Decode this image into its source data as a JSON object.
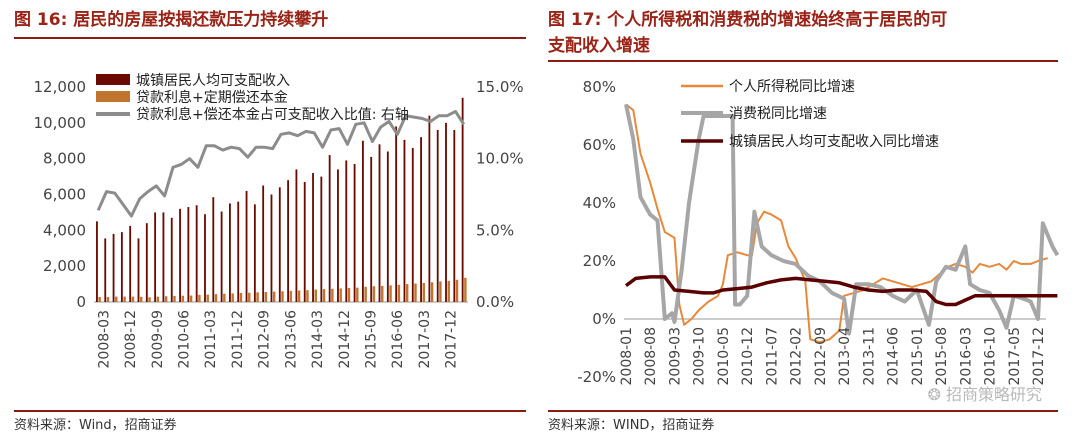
{
  "left": {
    "title": "图 16:   居民的房屋按揭还款压力持续攀升",
    "source": "资料来源：Wind，招商证券",
    "chart_data": {
      "type": "bar",
      "x_ticks": [
        "2008-03",
        "2008-12",
        "2009-09",
        "2010-06",
        "2011-03",
        "2011-12",
        "2012-09",
        "2013-06",
        "2014-03",
        "2014-12",
        "2015-09",
        "2016-06",
        "2017-03",
        "2017-12"
      ],
      "income": [
        4500,
        3550,
        3800,
        3900,
        4250,
        3550,
        4400,
        5000,
        5000,
        4700,
        5200,
        5300,
        5400,
        4900,
        5850,
        5050,
        5500,
        5600,
        6200,
        5450,
        6500,
        6000,
        6400,
        6800,
        7400,
        6700,
        7200,
        7000,
        8200,
        7400,
        7900,
        7700,
        9000,
        8100,
        8800,
        8400,
        9800,
        9050,
        8600,
        9200,
        10400,
        9600,
        10000,
        9600,
        11400
      ],
      "loan": [
        280,
        280,
        300,
        300,
        300,
        290,
        260,
        300,
        320,
        340,
        350,
        360,
        400,
        410,
        440,
        460,
        480,
        500,
        520,
        540,
        560,
        580,
        600,
        620,
        640,
        660,
        700,
        720,
        740,
        760,
        780,
        800,
        850,
        880,
        900,
        930,
        960,
        1000,
        1030,
        1060,
        1100,
        1150,
        1180,
        1240,
        1350
      ],
      "ratio": [
        6.4,
        7.7,
        7.6,
        6.8,
        6.0,
        7.2,
        7.7,
        8.1,
        7.4,
        9.4,
        9.6,
        10.0,
        9.4,
        10.9,
        10.9,
        10.6,
        10.8,
        10.7,
        10.1,
        10.8,
        10.8,
        10.7,
        11.7,
        11.8,
        11.6,
        11.9,
        11.8,
        10.8,
        12.0,
        12.1,
        11.0,
        12.4,
        12.5,
        11.2,
        12.2,
        12.6,
        11.7,
        13.0,
        12.9,
        12.8,
        12.6,
        13.0,
        13.0,
        13.3,
        12.4
      ],
      "y_left": {
        "min": 0,
        "max": 12000,
        "ticks": [
          "0",
          "2,000",
          "4,000",
          "6,000",
          "8,000",
          "10,000",
          "12,000"
        ]
      },
      "y_right": {
        "min": 0,
        "max": 15,
        "ticks": [
          "0.0%",
          "5.0%",
          "10.0%",
          "15.0%"
        ]
      },
      "legend": [
        {
          "label": "城镇居民人均可支配收入",
          "color": "#6b0a00",
          "kind": "bar"
        },
        {
          "label": "贷款利息+定期偿还本金",
          "color": "#c0742e",
          "kind": "bar"
        },
        {
          "label": "贷款利息+偿还本金占可支配收入比值: 右轴",
          "color": "#8c8c8c",
          "kind": "line"
        }
      ]
    }
  },
  "right": {
    "title_line1": "图 17:   个人所得税和消费税的增速始终高于居民的可",
    "title_line2": "支配收入增速",
    "source": "资料来源：WIND，招商证券",
    "watermark": "招商策略研究",
    "chart_data": {
      "type": "line",
      "x_ticks": [
        "2008-01",
        "2008-08",
        "2009-03",
        "2009-10",
        "2010-05",
        "2010-12",
        "2011-07",
        "2012-02",
        "2012-09",
        "2013-04",
        "2013-11",
        "2014-06",
        "2015-01",
        "2015-08",
        "2016-03",
        "2016-10",
        "2017-05",
        "2017-12"
      ],
      "y": {
        "min": -20,
        "max": 80,
        "ticks": [
          "-20%",
          "0%",
          "20%",
          "40%",
          "60%",
          "80%"
        ]
      },
      "series": [
        {
          "name": "个人所得税同比增速",
          "color": "#e8883a",
          "width": 2,
          "points": [
            [
              0,
              74
            ],
            [
              0.3,
              72
            ],
            [
              0.6,
              57
            ],
            [
              1,
              47
            ],
            [
              1.3,
              38
            ],
            [
              1.6,
              30
            ],
            [
              2,
              28
            ],
            [
              2.2,
              5
            ],
            [
              2.4,
              -2
            ],
            [
              2.7,
              0
            ],
            [
              3,
              3
            ],
            [
              3.4,
              6
            ],
            [
              3.8,
              8
            ],
            [
              4,
              12
            ],
            [
              4.2,
              22
            ],
            [
              4.6,
              23
            ],
            [
              5,
              22
            ],
            [
              5.2,
              22
            ],
            [
              5.4,
              33
            ],
            [
              5.7,
              37
            ],
            [
              6,
              36
            ],
            [
              6.4,
              34
            ],
            [
              6.7,
              25
            ],
            [
              7,
              21
            ],
            [
              7.2,
              17
            ],
            [
              7.4,
              13
            ],
            [
              7.6,
              -7
            ],
            [
              8,
              -8
            ],
            [
              8.4,
              -7
            ],
            [
              8.8,
              -4
            ],
            [
              9,
              8
            ],
            [
              9.4,
              9
            ],
            [
              9.8,
              10
            ],
            [
              10.2,
              12
            ],
            [
              10.6,
              14
            ],
            [
              11,
              13
            ],
            [
              11.4,
              12
            ],
            [
              11.8,
              11
            ],
            [
              12.2,
              12
            ],
            [
              12.6,
              13
            ],
            [
              13,
              16
            ],
            [
              13.3,
              18
            ],
            [
              13.6,
              19
            ],
            [
              14,
              18
            ],
            [
              14.3,
              16
            ],
            [
              14.6,
              19
            ],
            [
              15,
              18
            ],
            [
              15.4,
              19
            ],
            [
              15.7,
              17
            ],
            [
              16,
              20
            ],
            [
              16.3,
              19
            ],
            [
              16.7,
              19
            ],
            [
              17,
              20
            ],
            [
              17.4,
              21
            ]
          ]
        },
        {
          "name": "消费税同比增速",
          "color": "#a6a6a6",
          "width": 4,
          "points": [
            [
              0,
              74
            ],
            [
              0.3,
              62
            ],
            [
              0.6,
              42
            ],
            [
              1,
              36
            ],
            [
              1.3,
              34
            ],
            [
              1.6,
              0
            ],
            [
              1.9,
              2
            ],
            [
              2,
              -1
            ],
            [
              2.3,
              17
            ],
            [
              2.6,
              40
            ],
            [
              3,
              62
            ],
            [
              3.2,
              70
            ],
            [
              3.6,
              70
            ],
            [
              4,
              70
            ],
            [
              4.4,
              70
            ],
            [
              4.5,
              5
            ],
            [
              4.7,
              5
            ],
            [
              5,
              8
            ],
            [
              5.3,
              37
            ],
            [
              5.6,
              25
            ],
            [
              6,
              22
            ],
            [
              6.5,
              20
            ],
            [
              7,
              19
            ],
            [
              7.5,
              15
            ],
            [
              8,
              13
            ],
            [
              8.5,
              9
            ],
            [
              9,
              7
            ],
            [
              9.2,
              -5
            ],
            [
              9.5,
              12
            ],
            [
              10,
              12
            ],
            [
              10.5,
              11
            ],
            [
              11,
              8
            ],
            [
              11.5,
              6
            ],
            [
              12,
              10
            ],
            [
              12.5,
              -2
            ],
            [
              12.8,
              13
            ],
            [
              13.2,
              18
            ],
            [
              13.6,
              17
            ],
            [
              14,
              25
            ],
            [
              14.2,
              12
            ],
            [
              14.6,
              10
            ],
            [
              15,
              9
            ],
            [
              15.4,
              3
            ],
            [
              15.7,
              -3
            ],
            [
              16,
              8
            ],
            [
              16.4,
              7
            ],
            [
              16.7,
              6
            ],
            [
              17,
              0
            ],
            [
              17.2,
              33
            ],
            [
              17.6,
              25
            ],
            [
              17.8,
              22
            ]
          ]
        },
        {
          "name": "城镇居民人均可支配收入同比增速",
          "color": "#5a0000",
          "width": 3.5,
          "points": [
            [
              0,
              11.5
            ],
            [
              0.4,
              14
            ],
            [
              1,
              14.5
            ],
            [
              1.6,
              14.5
            ],
            [
              2,
              10
            ],
            [
              2.6,
              9.5
            ],
            [
              3.2,
              9
            ],
            [
              3.6,
              9
            ],
            [
              4,
              10
            ],
            [
              4.6,
              10.5
            ],
            [
              5.2,
              11
            ],
            [
              5.8,
              12.5
            ],
            [
              6.4,
              13.5
            ],
            [
              7,
              14
            ],
            [
              7.6,
              13.5
            ],
            [
              8.2,
              13
            ],
            [
              8.8,
              12.5
            ],
            [
              9.4,
              11
            ],
            [
              10,
              10
            ],
            [
              10.6,
              9.5
            ],
            [
              11.2,
              10
            ],
            [
              11.8,
              10
            ],
            [
              12.4,
              9.5
            ],
            [
              12.8,
              6
            ],
            [
              13.2,
              5
            ],
            [
              13.6,
              5
            ],
            [
              14,
              6.5
            ],
            [
              14.4,
              8
            ],
            [
              15,
              8
            ],
            [
              15.6,
              8
            ],
            [
              16.2,
              8
            ],
            [
              16.8,
              8
            ],
            [
              17.2,
              8
            ],
            [
              17.8,
              8
            ]
          ]
        }
      ]
    }
  }
}
